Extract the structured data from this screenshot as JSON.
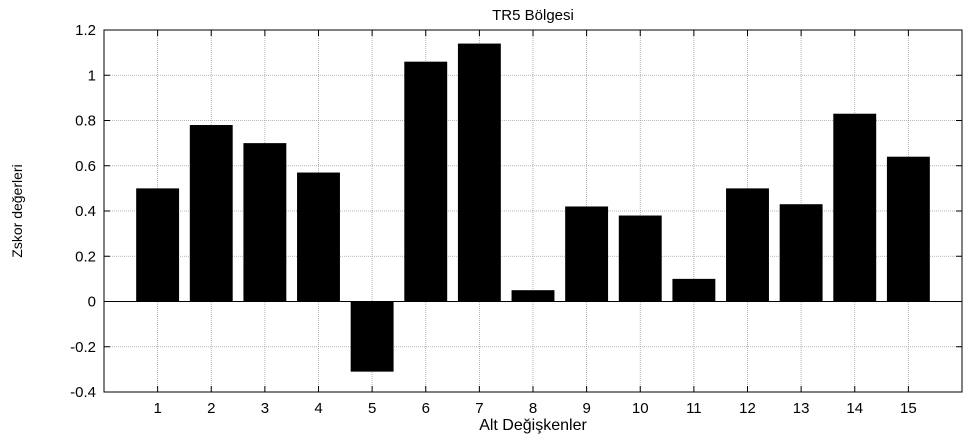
{
  "chart_data": {
    "type": "bar",
    "title": "TR5 Bölgesi",
    "xlabel": "Alt Değişkenler",
    "ylabel": "Zskor değerleri",
    "categories": [
      "1",
      "2",
      "3",
      "4",
      "5",
      "6",
      "7",
      "8",
      "9",
      "10",
      "11",
      "12",
      "13",
      "14",
      "15"
    ],
    "values": [
      0.5,
      0.78,
      0.7,
      0.57,
      -0.31,
      1.06,
      1.14,
      0.05,
      0.42,
      0.38,
      0.1,
      0.5,
      0.43,
      0.83,
      0.64
    ],
    "ylim": [
      -0.4,
      1.2
    ],
    "yticks": [
      "-0.4",
      "-0.2",
      "0",
      "0.2",
      "0.4",
      "0.6",
      "0.8",
      "1",
      "1.2"
    ],
    "xlim": [
      0,
      16
    ],
    "grid": true,
    "bar_color": "#000000",
    "grid_color": "#a0a0a0",
    "axis_color": "#000000"
  }
}
